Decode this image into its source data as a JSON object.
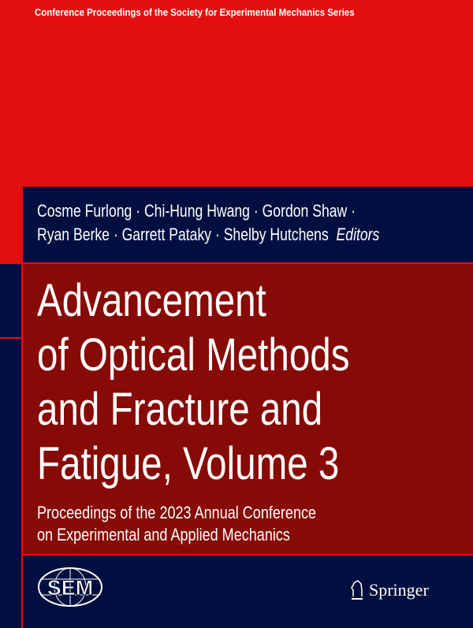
{
  "series": "Conference Proceedings of the Society for Experimental Mechanics Series",
  "editors": {
    "line1": "Cosme Furlong · Chi-Hung Hwang · Gordon Shaw ·",
    "line2": "Ryan Berke · Garrett Pataky · Shelby Hutchens",
    "role": "Editors"
  },
  "title": [
    "Advancement",
    "of Optical Methods",
    "and Fracture and",
    "Fatigue, Volume 3"
  ],
  "subtitle": [
    "Proceedings of the 2023 Annual Conference",
    "on Experimental and Applied Mechanics"
  ],
  "logos": {
    "sem": "SEM",
    "publisher": "Springer",
    "publisher_icon": "knight-chess-icon"
  },
  "colors": {
    "red": "#e30f0f",
    "navy": "#000f3f",
    "dark_red": "#860a05"
  }
}
